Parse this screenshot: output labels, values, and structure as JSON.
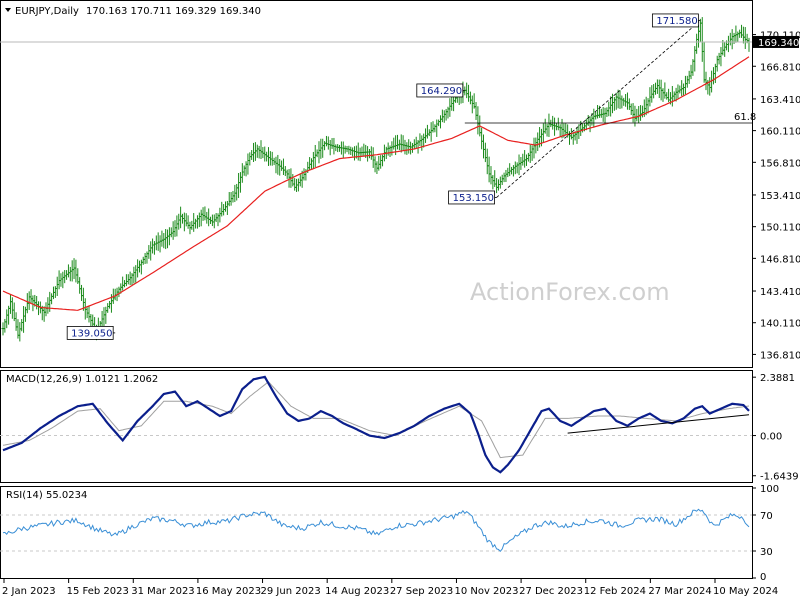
{
  "header": {
    "symbol_info": "EURJPY,Daily",
    "ohlc_info": "170.163 170.711 169.329 169.340"
  },
  "watermark": "ActionForex.com",
  "colors": {
    "price_bar": "#1b8a1b",
    "moving_average": "#e8201f",
    "macd_main": "#0b1f8c",
    "macd_signal": "#a0a0a0",
    "rsi_line": "#3a8fd6",
    "trendline": "#000000",
    "last_price_badge": "#000000"
  },
  "chart_data": [
    {
      "type": "line",
      "panel": "price",
      "ylim": [
        135.5,
        173.5
      ],
      "yticks": [
        "136.810",
        "140.110",
        "143.410",
        "146.810",
        "150.110",
        "153.410",
        "156.810",
        "160.110",
        "163.410",
        "166.810",
        "170.110"
      ],
      "ytick_values": [
        136.81,
        140.11,
        143.41,
        146.81,
        150.11,
        153.41,
        156.81,
        160.11,
        163.41,
        166.81,
        170.11
      ],
      "last_price": "169.340",
      "last_price_value": 169.34,
      "xticks": [
        "2 Jan 2023",
        "15 Feb 2023",
        "31 Mar 2023",
        "16 May 2023",
        "29 Jun 2023",
        "14 Aug 2023",
        "27 Sep 2023",
        "10 Nov 2023",
        "27 Dec 2023",
        "12 Feb 2024",
        "27 Mar 2024",
        "10 May 2024"
      ],
      "close_anchors": [
        [
          0,
          139.5
        ],
        [
          4,
          142.3
        ],
        [
          8,
          138.8
        ],
        [
          14,
          142.8
        ],
        [
          22,
          141.2
        ],
        [
          30,
          144.5
        ],
        [
          38,
          145.8
        ],
        [
          44,
          141.5
        ],
        [
          50,
          139.2
        ],
        [
          56,
          141.8
        ],
        [
          62,
          143.6
        ],
        [
          68,
          144.8
        ],
        [
          74,
          146.4
        ],
        [
          80,
          148.2
        ],
        [
          86,
          148.8
        ],
        [
          91,
          149.6
        ],
        [
          95,
          151.2
        ],
        [
          100,
          150.0
        ],
        [
          106,
          151.4
        ],
        [
          112,
          150.6
        ],
        [
          118,
          151.9
        ],
        [
          124,
          153.6
        ],
        [
          128,
          155.8
        ],
        [
          132,
          157.4
        ],
        [
          136,
          158.2
        ],
        [
          140,
          157.6
        ],
        [
          144,
          157.0
        ],
        [
          148,
          156.4
        ],
        [
          152,
          155.6
        ],
        [
          156,
          154.2
        ],
        [
          160,
          155.2
        ],
        [
          166,
          157.3
        ],
        [
          172,
          158.8
        ],
        [
          178,
          158.4
        ],
        [
          184,
          158.2
        ],
        [
          190,
          157.8
        ],
        [
          196,
          157.9
        ],
        [
          200,
          156.2
        ],
        [
          205,
          158.2
        ],
        [
          212,
          158.7
        ],
        [
          218,
          158.4
        ],
        [
          224,
          159.2
        ],
        [
          230,
          160.3
        ],
        [
          236,
          161.8
        ],
        [
          242,
          163.5
        ],
        [
          247,
          164.3
        ],
        [
          252,
          162.6
        ],
        [
          256,
          159.0
        ],
        [
          260,
          155.6
        ],
        [
          264,
          154.2
        ],
        [
          268,
          155.4
        ],
        [
          274,
          156.4
        ],
        [
          280,
          157.2
        ],
        [
          286,
          159.2
        ],
        [
          292,
          160.8
        ],
        [
          298,
          160.4
        ],
        [
          304,
          159.4
        ],
        [
          310,
          160.4
        ],
        [
          316,
          161.6
        ],
        [
          322,
          161.9
        ],
        [
          328,
          163.6
        ],
        [
          334,
          163.0
        ],
        [
          338,
          161.4
        ],
        [
          342,
          162.0
        ],
        [
          346,
          163.6
        ],
        [
          350,
          164.8
        ],
        [
          356,
          163.3
        ],
        [
          360,
          164.1
        ],
        [
          364,
          164.6
        ],
        [
          368,
          166.2
        ],
        [
          371,
          169.6
        ],
        [
          373,
          171.3
        ],
        [
          375,
          165.4
        ],
        [
          378,
          164.6
        ],
        [
          382,
          167.5
        ],
        [
          386,
          168.8
        ],
        [
          390,
          169.9
        ],
        [
          394,
          170.3
        ],
        [
          397,
          169.6
        ],
        [
          399,
          169.34
        ]
      ],
      "ma_anchors": [
        [
          0,
          143.4
        ],
        [
          20,
          141.7
        ],
        [
          40,
          141.4
        ],
        [
          60,
          142.9
        ],
        [
          80,
          145.3
        ],
        [
          100,
          147.8
        ],
        [
          120,
          150.2
        ],
        [
          140,
          153.8
        ],
        [
          160,
          155.7
        ],
        [
          180,
          157.2
        ],
        [
          200,
          157.6
        ],
        [
          220,
          158.2
        ],
        [
          240,
          159.3
        ],
        [
          255,
          160.6
        ],
        [
          270,
          159.1
        ],
        [
          285,
          158.6
        ],
        [
          300,
          159.6
        ],
        [
          320,
          160.7
        ],
        [
          340,
          161.6
        ],
        [
          360,
          163.3
        ],
        [
          380,
          165.4
        ],
        [
          399,
          167.8
        ]
      ],
      "annotations": [
        {
          "label": "139.050",
          "index": 60,
          "value": 139.05,
          "side": "left"
        },
        {
          "label": "164.290",
          "index": 247,
          "value": 164.29,
          "side": "left"
        },
        {
          "label": "153.150",
          "index": 264,
          "value": 153.15,
          "side": "left"
        },
        {
          "label": "171.580",
          "index": 373,
          "value": 171.58,
          "side": "left"
        }
      ],
      "fib_level": {
        "label": "61.8",
        "value": 160.9,
        "from_index": 247
      },
      "fib_diagonal": {
        "from_index": 264,
        "from_value": 153.15,
        "to_index": 373,
        "to_value": 171.58
      },
      "price_line": {
        "value": 169.34
      }
    },
    {
      "type": "line",
      "panel": "macd",
      "title": "MACD(12,26,9) 1.0121 1.2062",
      "ylim": [
        -1.9,
        2.6
      ],
      "yticks": [
        "2.3881",
        "0.00",
        "-1.6439"
      ],
      "ytick_values": [
        2.3881,
        0.0,
        -1.6439
      ],
      "main_anchors": [
        [
          0,
          -0.6
        ],
        [
          10,
          -0.3
        ],
        [
          20,
          0.3
        ],
        [
          30,
          0.8
        ],
        [
          40,
          1.2
        ],
        [
          48,
          1.3
        ],
        [
          56,
          0.5
        ],
        [
          64,
          -0.2
        ],
        [
          72,
          0.6
        ],
        [
          80,
          1.2
        ],
        [
          86,
          1.7
        ],
        [
          92,
          1.8
        ],
        [
          98,
          1.2
        ],
        [
          104,
          1.4
        ],
        [
          110,
          1.1
        ],
        [
          116,
          0.8
        ],
        [
          122,
          1.0
        ],
        [
          128,
          1.9
        ],
        [
          134,
          2.3
        ],
        [
          140,
          2.4
        ],
        [
          146,
          1.6
        ],
        [
          152,
          0.9
        ],
        [
          158,
          0.6
        ],
        [
          164,
          0.7
        ],
        [
          170,
          1.0
        ],
        [
          176,
          0.8
        ],
        [
          182,
          0.5
        ],
        [
          188,
          0.3
        ],
        [
          196,
          0.0
        ],
        [
          204,
          -0.1
        ],
        [
          212,
          0.1
        ],
        [
          220,
          0.4
        ],
        [
          228,
          0.8
        ],
        [
          236,
          1.1
        ],
        [
          244,
          1.3
        ],
        [
          250,
          0.9
        ],
        [
          254,
          0.1
        ],
        [
          258,
          -0.8
        ],
        [
          262,
          -1.3
        ],
        [
          266,
          -1.5
        ],
        [
          270,
          -1.2
        ],
        [
          276,
          -0.6
        ],
        [
          282,
          0.2
        ],
        [
          288,
          1.0
        ],
        [
          292,
          1.1
        ],
        [
          298,
          0.6
        ],
        [
          304,
          0.4
        ],
        [
          310,
          0.7
        ],
        [
          316,
          1.0
        ],
        [
          322,
          1.1
        ],
        [
          328,
          0.6
        ],
        [
          334,
          0.4
        ],
        [
          340,
          0.7
        ],
        [
          346,
          0.9
        ],
        [
          352,
          0.6
        ],
        [
          358,
          0.5
        ],
        [
          364,
          0.7
        ],
        [
          370,
          1.1
        ],
        [
          374,
          1.2
        ],
        [
          378,
          0.9
        ],
        [
          384,
          1.1
        ],
        [
          390,
          1.3
        ],
        [
          396,
          1.25
        ],
        [
          399,
          1.01
        ]
      ],
      "signal_anchors": [
        [
          0,
          -0.4
        ],
        [
          14,
          -0.2
        ],
        [
          26,
          0.3
        ],
        [
          40,
          1.0
        ],
        [
          52,
          1.1
        ],
        [
          62,
          0.2
        ],
        [
          74,
          0.4
        ],
        [
          86,
          1.4
        ],
        [
          98,
          1.4
        ],
        [
          112,
          1.2
        ],
        [
          122,
          0.9
        ],
        [
          132,
          1.6
        ],
        [
          142,
          2.2
        ],
        [
          154,
          1.2
        ],
        [
          166,
          0.7
        ],
        [
          180,
          0.7
        ],
        [
          196,
          0.2
        ],
        [
          210,
          0.0
        ],
        [
          226,
          0.6
        ],
        [
          244,
          1.2
        ],
        [
          256,
          0.6
        ],
        [
          266,
          -0.9
        ],
        [
          278,
          -0.8
        ],
        [
          290,
          0.7
        ],
        [
          302,
          0.7
        ],
        [
          318,
          0.8
        ],
        [
          330,
          0.8
        ],
        [
          344,
          0.7
        ],
        [
          360,
          0.6
        ],
        [
          374,
          0.9
        ],
        [
          388,
          1.1
        ],
        [
          399,
          1.21
        ]
      ],
      "trendline": {
        "from_index": 302,
        "from_value": 0.1,
        "to_index": 399,
        "to_value": 0.85
      }
    },
    {
      "type": "line",
      "panel": "rsi",
      "title": "RSI(14) 55.0234",
      "ylim": [
        0,
        100
      ],
      "yticks": [
        "100",
        "70",
        "30",
        "0"
      ],
      "ytick_values": [
        100,
        70,
        30,
        0
      ],
      "rsi_anchors": [
        [
          0,
          48
        ],
        [
          10,
          55
        ],
        [
          20,
          58
        ],
        [
          30,
          62
        ],
        [
          40,
          64
        ],
        [
          50,
          54
        ],
        [
          60,
          47
        ],
        [
          70,
          58
        ],
        [
          80,
          66
        ],
        [
          90,
          64
        ],
        [
          100,
          58
        ],
        [
          110,
          62
        ],
        [
          120,
          63
        ],
        [
          130,
          70
        ],
        [
          140,
          72
        ],
        [
          150,
          58
        ],
        [
          160,
          55
        ],
        [
          170,
          62
        ],
        [
          180,
          58
        ],
        [
          190,
          55
        ],
        [
          200,
          48
        ],
        [
          210,
          58
        ],
        [
          220,
          60
        ],
        [
          230,
          64
        ],
        [
          240,
          68
        ],
        [
          248,
          74
        ],
        [
          254,
          58
        ],
        [
          260,
          40
        ],
        [
          266,
          32
        ],
        [
          274,
          45
        ],
        [
          284,
          58
        ],
        [
          292,
          62
        ],
        [
          300,
          57
        ],
        [
          310,
          62
        ],
        [
          320,
          64
        ],
        [
          330,
          58
        ],
        [
          340,
          64
        ],
        [
          350,
          66
        ],
        [
          360,
          60
        ],
        [
          370,
          74
        ],
        [
          374,
          76
        ],
        [
          380,
          58
        ],
        [
          390,
          70
        ],
        [
          396,
          68
        ],
        [
          399,
          55
        ]
      ]
    }
  ]
}
